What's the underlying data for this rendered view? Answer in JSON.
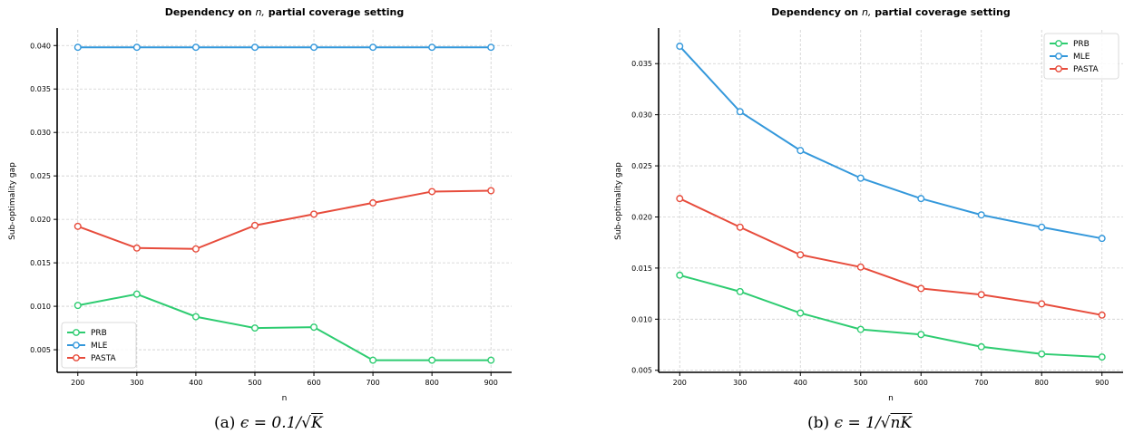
{
  "chart_data": [
    {
      "type": "line",
      "title_prefix": "Dependency on",
      "title_var": "n,",
      "title_suffix": "partial coverage setting",
      "xlabel": "n",
      "ylabel": "Sub-optimality gap",
      "x": [
        200,
        300,
        400,
        500,
        600,
        700,
        800,
        900
      ],
      "xlim": [
        165,
        935
      ],
      "ylim": [
        0.0024,
        0.0418
      ],
      "yticks": [
        "0.005",
        "0.010",
        "0.015",
        "0.020",
        "0.025",
        "0.030",
        "0.035",
        "0.040"
      ],
      "ytick_values": [
        0.005,
        0.01,
        0.015,
        0.02,
        0.025,
        0.03,
        0.035,
        0.04
      ],
      "xticks": [
        "200",
        "300",
        "400",
        "500",
        "600",
        "700",
        "800",
        "900"
      ],
      "grid": true,
      "legend_position": "lower-left",
      "series": [
        {
          "name": "PRB",
          "color": "#2ecc71",
          "values": [
            0.0101,
            0.0114,
            0.0088,
            0.0075,
            0.0076,
            0.0038,
            0.0038,
            0.0038
          ]
        },
        {
          "name": "MLE",
          "color": "#3498db",
          "values": [
            0.0398,
            0.0398,
            0.0398,
            0.0398,
            0.0398,
            0.0398,
            0.0398,
            0.0398
          ]
        },
        {
          "name": "PASTA",
          "color": "#e74c3c",
          "values": [
            0.0192,
            0.0167,
            0.0166,
            0.0193,
            0.0206,
            0.0219,
            0.0232,
            0.0233
          ]
        }
      ],
      "caption_label": "(a)",
      "caption_expr": "ϵ = 0.1/√",
      "caption_radicand": "K"
    },
    {
      "type": "line",
      "title_prefix": "Dependency on",
      "title_var": "n,",
      "title_suffix": "partial coverage setting",
      "xlabel": "n",
      "ylabel": "Sub-optimality gap",
      "x": [
        200,
        300,
        400,
        500,
        600,
        700,
        800,
        900
      ],
      "xlim": [
        165,
        935
      ],
      "ylim": [
        0.0048,
        0.0383
      ],
      "yticks": [
        "0.005",
        "0.010",
        "0.015",
        "0.020",
        "0.025",
        "0.030",
        "0.035"
      ],
      "ytick_values": [
        0.005,
        0.01,
        0.015,
        0.02,
        0.025,
        0.03,
        0.035
      ],
      "xticks": [
        "200",
        "300",
        "400",
        "500",
        "600",
        "700",
        "800",
        "900"
      ],
      "grid": true,
      "legend_position": "top-right",
      "series": [
        {
          "name": "PRB",
          "color": "#2ecc71",
          "values": [
            0.0143,
            0.0127,
            0.0106,
            0.009,
            0.0085,
            0.0073,
            0.0066,
            0.0063
          ]
        },
        {
          "name": "MLE",
          "color": "#3498db",
          "values": [
            0.0367,
            0.0303,
            0.0265,
            0.0238,
            0.0218,
            0.0202,
            0.019,
            0.0179
          ]
        },
        {
          "name": "PASTA",
          "color": "#e74c3c",
          "values": [
            0.0218,
            0.019,
            0.0163,
            0.0151,
            0.013,
            0.0124,
            0.0115,
            0.0104
          ]
        }
      ],
      "caption_label": "(b)",
      "caption_expr": "ϵ = 1/√",
      "caption_radicand": "nK"
    }
  ]
}
